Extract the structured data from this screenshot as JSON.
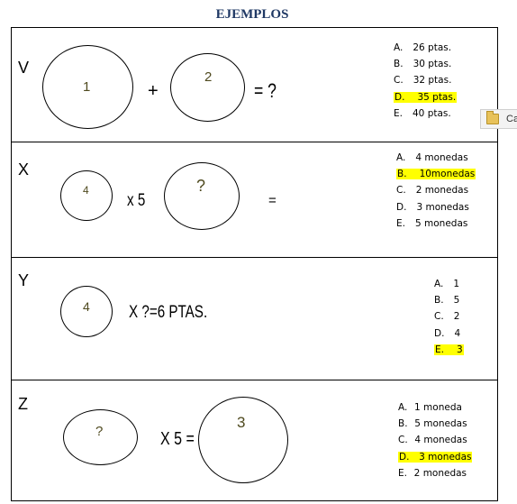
{
  "title": "EJEMPLOS",
  "rows": [
    {
      "letter": "V",
      "circles": [
        "1",
        "2"
      ],
      "ops": [
        "+",
        "= ?"
      ],
      "options": [
        {
          "letter": "A.",
          "text": "26 ptas.",
          "highlight": false
        },
        {
          "letter": "B.",
          "text": "30 ptas.",
          "highlight": false
        },
        {
          "letter": "C.",
          "text": "32 ptas.",
          "highlight": false
        },
        {
          "letter": "D.",
          "text": "35 ptas.",
          "highlight": true
        },
        {
          "letter": "E.",
          "text": "40 ptas.",
          "highlight": false
        }
      ]
    },
    {
      "letter": "X",
      "circles": [
        "4",
        "?"
      ],
      "ops": [
        "x 5",
        "="
      ],
      "options": [
        {
          "letter": "A.",
          "text": "4 monedas",
          "highlight": false
        },
        {
          "letter": "B.",
          "text": "10monedas",
          "highlight": true
        },
        {
          "letter": "C.",
          "text": "2 monedas",
          "highlight": false
        },
        {
          "letter": "D.",
          "text": "3 monedas",
          "highlight": false
        },
        {
          "letter": "E.",
          "text": "5 monedas",
          "highlight": false
        }
      ]
    },
    {
      "letter": "Y",
      "circles": [
        "4"
      ],
      "ops": [
        "X ?=6 PTAS."
      ],
      "options": [
        {
          "letter": "A.",
          "text": "1",
          "highlight": false
        },
        {
          "letter": "B.",
          "text": "5",
          "highlight": false
        },
        {
          "letter": "C.",
          "text": "2",
          "highlight": false
        },
        {
          "letter": "D.",
          "text": "4",
          "highlight": false
        },
        {
          "letter": "E.",
          "text": "3",
          "highlight": true
        }
      ]
    },
    {
      "letter": "Z",
      "circles": [
        "?",
        "3"
      ],
      "ops": [
        "X 5 ="
      ],
      "options": [
        {
          "letter": "A.",
          "text": "1 moneda",
          "highlight": false
        },
        {
          "letter": "B.",
          "text": "5 monedas",
          "highlight": false
        },
        {
          "letter": "C.",
          "text": "4 monedas",
          "highlight": false
        },
        {
          "letter": "D.",
          "text": "3 monedas",
          "highlight": true
        },
        {
          "letter": "E.",
          "text": "2 monedas",
          "highlight": false
        }
      ]
    }
  ],
  "taskbar": {
    "label": "Ca",
    "icon": "folder-icon"
  },
  "colors": {
    "title": "#1f3864",
    "highlight": "#ffff00",
    "circle_number": "#4f4a1f"
  }
}
